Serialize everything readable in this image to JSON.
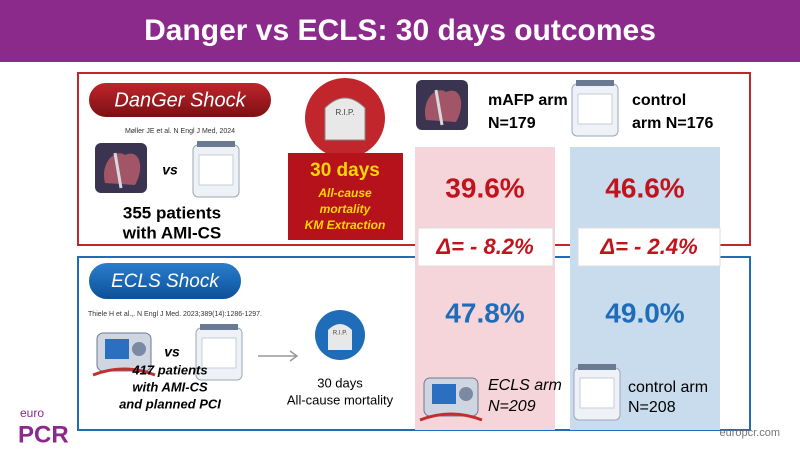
{
  "header": {
    "title": "Danger vs ECLS: 30 days outcomes"
  },
  "danger": {
    "label": "DanGer Shock",
    "reference": "Møller JE et al. N Engl J Med, 2024",
    "vs": "vs",
    "patients": [
      "355 patients",
      "with AMI-CS"
    ],
    "tombstone": "R.I.P.",
    "endpoint": [
      "30 days",
      "All-cause",
      "mortality",
      "KM Extraction"
    ],
    "arm": {
      "name": "mAFP arm",
      "n": "N=179",
      "mortality": "39.6%",
      "delta": "Δ= - 8.2%"
    },
    "control": {
      "name": "control",
      "n": "arm N=176",
      "mortality": "46.6%",
      "delta": "Δ= - 2.4%"
    }
  },
  "ecls": {
    "label": "ECLS Shock",
    "reference": "Thiele H et al.,. N Engl J Med. 2023;389(14):1286-1297.",
    "vs": "vs",
    "patients": [
      "417 patients",
      "with AMI-CS",
      "and planned PCI"
    ],
    "tombstone": "R.I.P.",
    "endpoint": [
      "30 days",
      "All-cause mortality"
    ],
    "arm": {
      "name": "ECLS arm",
      "n": "N=209",
      "mortality": "47.8%"
    },
    "control": {
      "name": "control arm",
      "n": "N=208",
      "mortality": "49.0%"
    }
  },
  "footer": {
    "logo_top": "euro",
    "logo_main": "PCR",
    "url": "europcr.com"
  }
}
